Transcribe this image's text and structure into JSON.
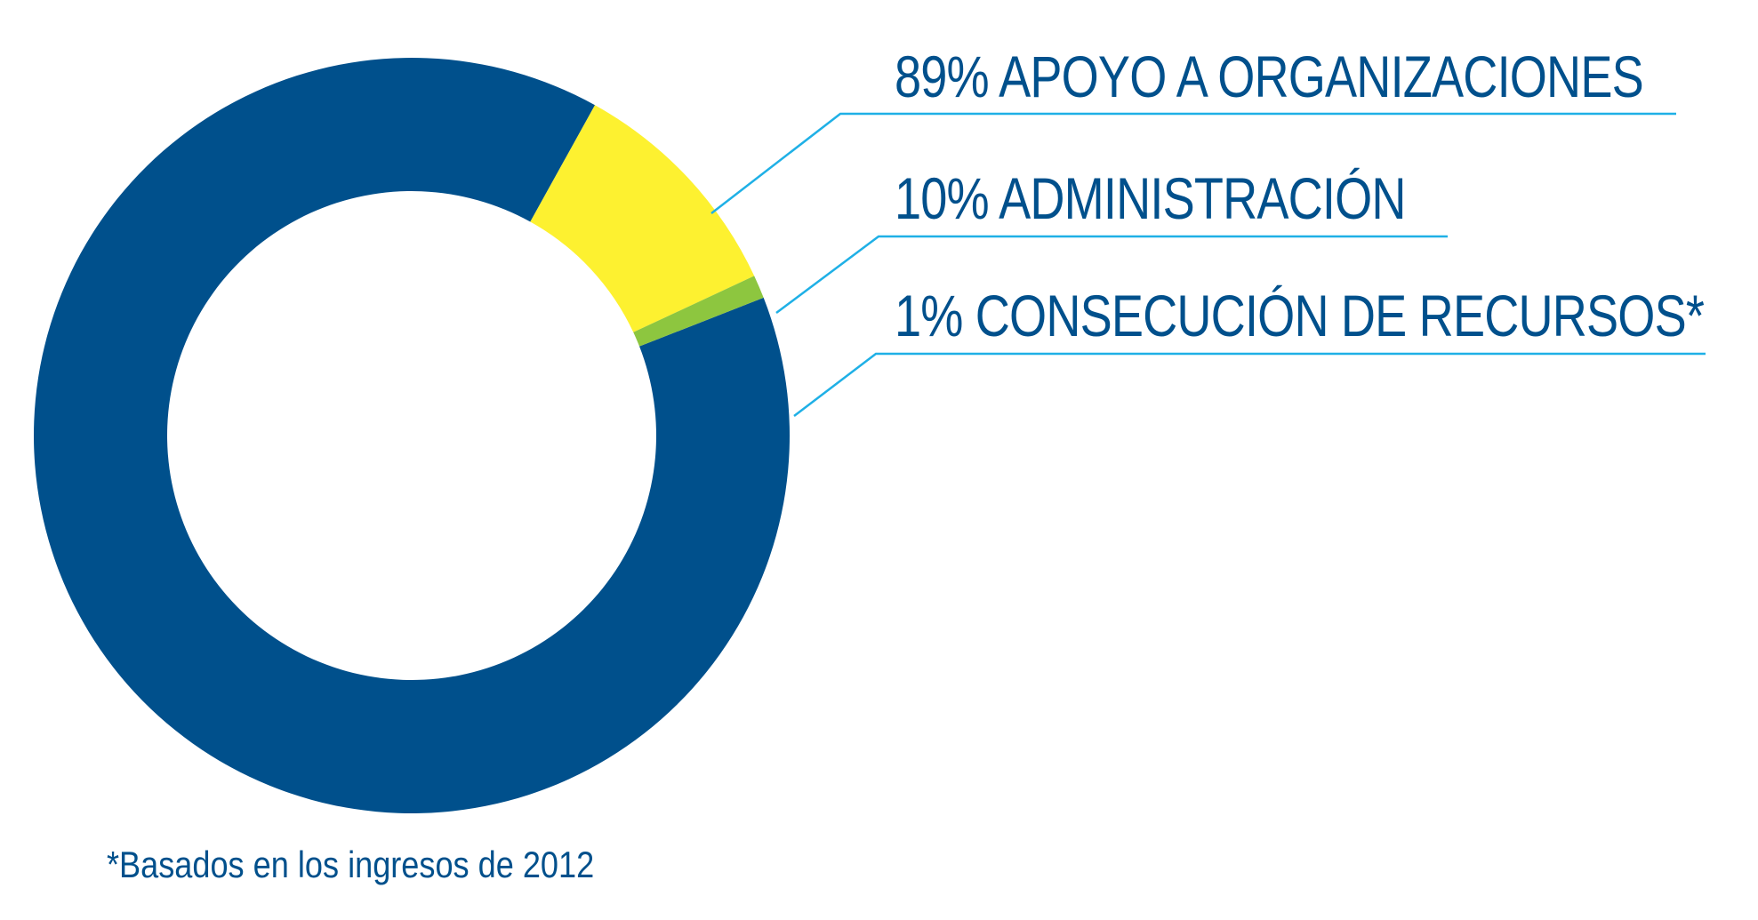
{
  "chart_data": {
    "type": "pie",
    "variant": "donut",
    "slices": [
      {
        "label": "89% APOYO A ORGANIZACIONES",
        "value": 89,
        "color": "#00508c"
      },
      {
        "label": "10% ADMINISTRACIÓN",
        "value": 10,
        "color": "#fdf130"
      },
      {
        "label": "1% CONSECUCIÓN DE RECURSOS*",
        "value": 1,
        "color": "#8dc63f"
      }
    ],
    "leader_line_color": "#1fb0e6",
    "footnote": "*Basados en los ingresos de 2012",
    "legend_placement": "right"
  }
}
